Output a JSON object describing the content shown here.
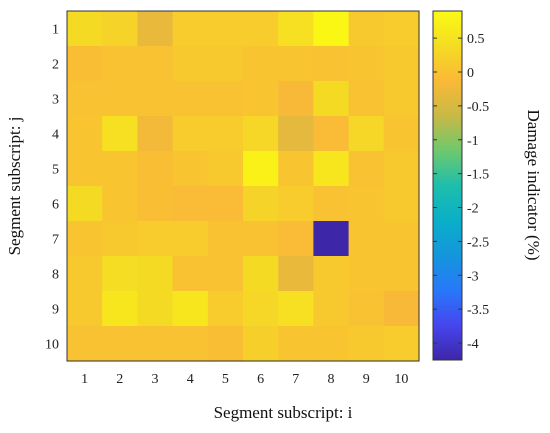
{
  "chart_data": {
    "type": "heatmap",
    "xlabel": "Segment subscript: i",
    "ylabel": "Segment subscript: j",
    "colorbar_label": "Damage indicator (%)",
    "x_categories": [
      "1",
      "2",
      "3",
      "4",
      "5",
      "6",
      "7",
      "8",
      "9",
      "10"
    ],
    "y_categories": [
      "1",
      "2",
      "3",
      "4",
      "5",
      "6",
      "7",
      "8",
      "9",
      "10"
    ],
    "color_range": [
      -4.25,
      0.9
    ],
    "colorbar_ticks": [
      "0.5",
      "0",
      "-0.5",
      "-1",
      "-1.5",
      "-2",
      "-2.5",
      "-3",
      "-3.5",
      "-4"
    ],
    "colorbar_tick_values": [
      0.5,
      0,
      -0.5,
      -1,
      -1.5,
      -2,
      -2.5,
      -3,
      -3.5,
      -4
    ],
    "colormap": "parula",
    "values": [
      [
        0.35,
        0.25,
        -0.3,
        0.15,
        0.15,
        0.15,
        0.45,
        0.85,
        0.1,
        0.15
      ],
      [
        -0.05,
        0.0,
        0.0,
        0.1,
        0.1,
        0.05,
        0.05,
        0.0,
        0.05,
        0.1
      ],
      [
        0.0,
        0.0,
        0.0,
        0.0,
        0.0,
        0.05,
        -0.15,
        0.35,
        0.0,
        0.1
      ],
      [
        0.05,
        0.45,
        -0.2,
        0.15,
        0.15,
        0.3,
        -0.35,
        -0.1,
        0.3,
        0.05
      ],
      [
        0.05,
        0.05,
        -0.05,
        0.05,
        0.1,
        0.75,
        0.05,
        0.55,
        0.0,
        0.1
      ],
      [
        0.35,
        0.05,
        -0.05,
        -0.1,
        -0.1,
        0.25,
        0.15,
        0.0,
        0.05,
        0.1
      ],
      [
        0.05,
        0.1,
        0.15,
        0.15,
        0.0,
        0.0,
        -0.1,
        -4.25,
        0.05,
        0.05
      ],
      [
        0.1,
        0.4,
        0.35,
        0.0,
        0.0,
        0.35,
        -0.3,
        0.1,
        0.05,
        0.05
      ],
      [
        0.1,
        0.55,
        0.35,
        0.55,
        0.15,
        0.3,
        0.45,
        0.1,
        0.0,
        -0.15
      ],
      [
        0.0,
        0.0,
        0.0,
        0.0,
        -0.05,
        0.2,
        0.05,
        0.05,
        0.1,
        0.15
      ]
    ]
  }
}
